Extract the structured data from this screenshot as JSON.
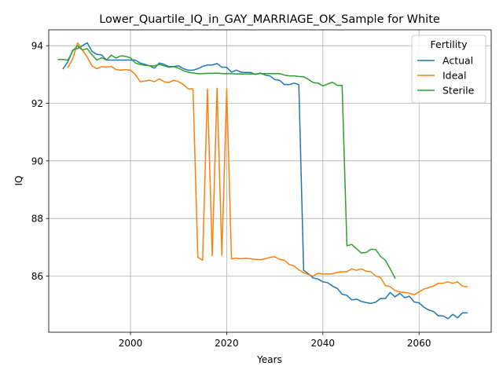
{
  "chart_data": {
    "type": "line",
    "title": "Lower_Quartile_IQ_in_GAY_MARRIAGE_OK_Sample for White",
    "xlabel": "Years",
    "ylabel": "IQ",
    "xlim": [
      1983,
      2075
    ],
    "ylim": [
      84.05,
      94.55
    ],
    "xticks": [
      2000,
      2020,
      2040,
      2060
    ],
    "yticks": [
      86,
      88,
      90,
      92,
      94
    ],
    "grid": true,
    "legend": {
      "title": "Fertility",
      "position": "top-right"
    },
    "series": [
      {
        "name": "Actual",
        "color": "#1f77b4",
        "x": [
          1986,
          1987,
          1988,
          1989,
          1990,
          1991,
          1992,
          1993,
          1994,
          1995,
          1996,
          1997,
          1998,
          1999,
          2000,
          2001,
          2002,
          2003,
          2004,
          2005,
          2006,
          2007,
          2008,
          2009,
          2010,
          2011,
          2012,
          2013,
          2014,
          2015,
          2016,
          2017,
          2018,
          2019,
          2020,
          2021,
          2022,
          2023,
          2024,
          2025,
          2026,
          2027,
          2028,
          2029,
          2030,
          2031,
          2032,
          2033,
          2034,
          2035,
          2036,
          2037,
          2038,
          2039,
          2040,
          2041,
          2042,
          2043,
          2044,
          2045,
          2046,
          2047,
          2048,
          2049,
          2050,
          2051,
          2052,
          2053,
          2054,
          2055,
          2056,
          2057,
          2058,
          2059,
          2060,
          2061,
          2062,
          2063,
          2064,
          2065,
          2066,
          2067,
          2068,
          2069,
          2070
        ],
        "values": [
          93.2,
          93.45,
          93.85,
          93.9,
          94.0,
          94.1,
          93.8,
          93.7,
          93.68,
          93.5,
          93.5,
          93.5,
          93.5,
          93.5,
          93.5,
          93.5,
          93.4,
          93.35,
          93.3,
          93.22,
          93.4,
          93.35,
          93.27,
          93.28,
          93.3,
          93.2,
          93.15,
          93.15,
          93.2,
          93.28,
          93.33,
          93.33,
          93.38,
          93.25,
          93.25,
          93.08,
          93.15,
          93.08,
          93.07,
          93.07,
          93.0,
          93.05,
          92.98,
          92.95,
          92.82,
          92.8,
          92.65,
          92.65,
          92.7,
          92.65,
          86.2,
          86.08,
          85.93,
          85.9,
          85.8,
          85.77,
          85.65,
          85.57,
          85.37,
          85.33,
          85.17,
          85.2,
          85.12,
          85.08,
          85.05,
          85.1,
          85.22,
          85.22,
          85.43,
          85.28,
          85.4,
          85.25,
          85.3,
          85.1,
          85.07,
          84.92,
          84.82,
          84.77,
          84.62,
          84.62,
          84.52,
          84.67,
          84.55,
          84.72,
          84.72
        ]
      },
      {
        "name": "Ideal",
        "color": "#ff7f0e",
        "x": [
          1987,
          1988,
          1989,
          1990,
          1991,
          1992,
          1993,
          1994,
          1995,
          1996,
          1997,
          1998,
          1999,
          2000,
          2001,
          2002,
          2003,
          2004,
          2005,
          2006,
          2007,
          2008,
          2009,
          2010,
          2011,
          2012,
          2013,
          2014,
          2015,
          2016,
          2017,
          2018,
          2019,
          2020,
          2021,
          2022,
          2023,
          2024,
          2025,
          2026,
          2027,
          2028,
          2029,
          2030,
          2031,
          2032,
          2033,
          2034,
          2035,
          2036,
          2037,
          2038,
          2039,
          2040,
          2041,
          2042,
          2043,
          2044,
          2045,
          2046,
          2047,
          2048,
          2049,
          2050,
          2051,
          2052,
          2053,
          2054,
          2055,
          2056,
          2057,
          2058,
          2059,
          2060,
          2061,
          2062,
          2063,
          2064,
          2065,
          2066,
          2067,
          2068,
          2069,
          2070
        ],
        "values": [
          93.25,
          93.55,
          94.1,
          93.85,
          93.6,
          93.3,
          93.2,
          93.27,
          93.25,
          93.28,
          93.17,
          93.15,
          93.17,
          93.15,
          93.0,
          92.75,
          92.77,
          92.8,
          92.75,
          92.85,
          92.75,
          92.72,
          92.8,
          92.75,
          92.65,
          92.5,
          92.5,
          86.65,
          86.55,
          92.5,
          86.7,
          92.52,
          86.72,
          92.5,
          86.6,
          86.62,
          86.6,
          86.62,
          86.6,
          86.58,
          86.57,
          86.6,
          86.65,
          86.67,
          86.58,
          86.55,
          86.4,
          86.35,
          86.22,
          86.12,
          86.05,
          86.0,
          86.1,
          86.07,
          86.07,
          86.08,
          86.13,
          86.15,
          86.15,
          86.25,
          86.2,
          86.25,
          86.17,
          86.15,
          86.0,
          85.95,
          85.67,
          85.63,
          85.5,
          85.45,
          85.43,
          85.4,
          85.35,
          85.45,
          85.55,
          85.6,
          85.65,
          85.75,
          85.75,
          85.8,
          85.75,
          85.8,
          85.65,
          85.63
        ]
      },
      {
        "name": "Sterile",
        "color": "#2ca02c",
        "x": [
          1985,
          1986,
          1987,
          1988,
          1989,
          1990,
          1991,
          1992,
          1993,
          1994,
          1995,
          1996,
          1997,
          1998,
          1999,
          2000,
          2001,
          2002,
          2003,
          2004,
          2005,
          2006,
          2007,
          2008,
          2009,
          2010,
          2011,
          2012,
          2013,
          2014,
          2015,
          2016,
          2017,
          2018,
          2019,
          2020,
          2021,
          2022,
          2023,
          2024,
          2025,
          2026,
          2027,
          2028,
          2029,
          2030,
          2031,
          2032,
          2033,
          2034,
          2035,
          2036,
          2037,
          2038,
          2039,
          2040,
          2041,
          2042,
          2043,
          2044,
          2045,
          2046,
          2047,
          2048,
          2049,
          2050,
          2051,
          2052,
          2053,
          2054,
          2055
        ],
        "values": [
          93.52,
          93.52,
          93.5,
          93.82,
          94.0,
          93.85,
          93.9,
          93.68,
          93.5,
          93.58,
          93.5,
          93.67,
          93.57,
          93.65,
          93.63,
          93.58,
          93.4,
          93.35,
          93.32,
          93.3,
          93.3,
          93.35,
          93.3,
          93.25,
          93.27,
          93.22,
          93.13,
          93.08,
          93.05,
          93.03,
          93.03,
          93.04,
          93.04,
          93.05,
          93.03,
          93.03,
          93.03,
          93.02,
          93.02,
          93.02,
          93.02,
          93.02,
          93.03,
          93.03,
          93.03,
          93.03,
          93.03,
          92.98,
          92.95,
          92.95,
          92.93,
          92.92,
          92.83,
          92.72,
          92.7,
          92.6,
          92.67,
          92.73,
          92.62,
          92.62,
          87.05,
          87.1,
          86.95,
          86.8,
          86.82,
          86.93,
          86.92,
          86.68,
          86.55,
          86.25,
          85.93
        ]
      }
    ]
  }
}
